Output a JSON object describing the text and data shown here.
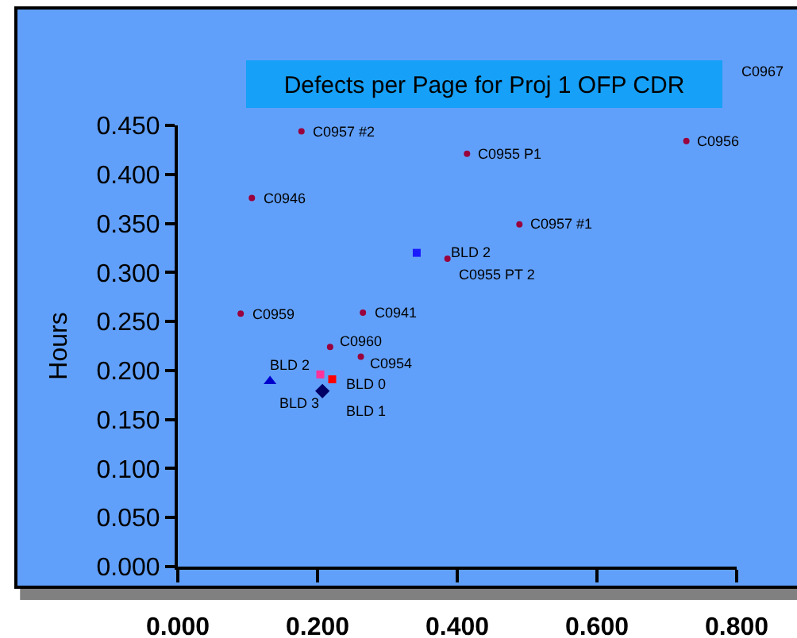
{
  "chart_data": {
    "type": "scatter",
    "title": "Defects per Page for Proj 1 OFP CDR",
    "ylabel": "Hours",
    "xlim": [
      0,
      0.8
    ],
    "xticks": [
      {
        "value": 0,
        "label": "0.000"
      },
      {
        "value": 0.2,
        "label": "0.200"
      },
      {
        "value": 0.4,
        "label": "0.400"
      },
      {
        "value": 0.6,
        "label": "0.600"
      },
      {
        "value": 0.8,
        "label": "0.800"
      }
    ],
    "ylim": [
      0,
      0.45
    ],
    "yticks": [
      {
        "value": 0,
        "label": "0.000"
      },
      {
        "value": 0.05,
        "label": "0.050"
      },
      {
        "value": 0.1,
        "label": "0.100"
      },
      {
        "value": 0.15,
        "label": "0.150"
      },
      {
        "value": 0.2,
        "label": "0.200"
      },
      {
        "value": 0.25,
        "label": "0.250"
      },
      {
        "value": 0.3,
        "label": "0.300"
      },
      {
        "value": 0.35,
        "label": "0.350"
      },
      {
        "value": 0.4,
        "label": "0.400"
      },
      {
        "value": 0.45,
        "label": "0.450"
      }
    ],
    "series": [
      {
        "color": "#99003d",
        "marker": "circle",
        "x": [
          0.177,
          0.728,
          0.414,
          0.106,
          0.489,
          0.386,
          0.09,
          0.265,
          0.218,
          0.262
        ],
        "values": [
          0.444,
          0.434,
          0.421,
          0.376,
          0.349,
          0.314,
          0.258,
          0.259,
          0.224,
          0.214
        ]
      },
      {
        "color": "#1a1aff",
        "marker": "square",
        "x": [
          0.342
        ],
        "values": [
          0.32
        ]
      },
      {
        "color": "#ff3399",
        "marker": "square",
        "x": [
          0.204
        ],
        "values": [
          0.196
        ]
      },
      {
        "color": "#ff0000",
        "marker": "square",
        "x": [
          0.221
        ],
        "values": [
          0.191
        ]
      },
      {
        "color": "#0000cc",
        "marker": "triangle",
        "x": [
          0.132
        ],
        "values": [
          0.189
        ]
      },
      {
        "color": "#000066",
        "marker": "diamond",
        "x": [
          0.207
        ],
        "values": [
          0.179
        ]
      }
    ],
    "annotations": [
      {
        "text": "C0957 #2",
        "x": 0.177,
        "y": 0.444
      },
      {
        "text": "C0956",
        "x": 0.728,
        "y": 0.434
      },
      {
        "text": "C0955 P1",
        "x": 0.414,
        "y": 0.421
      },
      {
        "text": "C0946",
        "x": 0.106,
        "y": 0.376
      },
      {
        "text": "C0957 #1",
        "x": 0.489,
        "y": 0.349
      },
      {
        "text": "BLD 2",
        "x": 0.342,
        "y": 0.32
      },
      {
        "text": "C0955 PT 2",
        "x": 0.386,
        "y": 0.314
      },
      {
        "text": "C0959",
        "x": 0.09,
        "y": 0.258
      },
      {
        "text": "C0941",
        "x": 0.265,
        "y": 0.259
      },
      {
        "text": "C0960",
        "x": 0.218,
        "y": 0.224
      },
      {
        "text": "C0954",
        "x": 0.262,
        "y": 0.214
      },
      {
        "text": "BLD 2",
        "x": 0.204,
        "y": 0.196
      },
      {
        "text": "BLD 0",
        "x": 0.221,
        "y": 0.191
      },
      {
        "text": "BLD 3",
        "x": 0.132,
        "y": 0.189
      },
      {
        "text": "BLD 1",
        "x": 0.207,
        "y": 0.179
      },
      "C0967"
    ]
  }
}
